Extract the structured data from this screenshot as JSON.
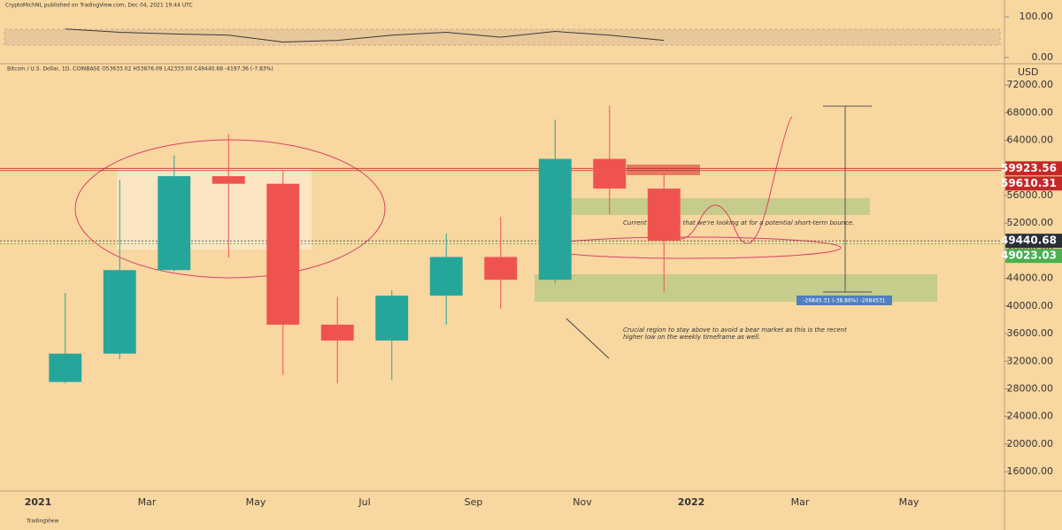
{
  "header": "CryptoMichNL published on TradingView.com, Dec 04, 2021 19:44 UTC",
  "legend_line": "Bitcoin / U.S. Dollar, 1D, COINBASE  O53633.02  H53876.09  L42333.00  C49440.68  -4197.36 (-7.83%)",
  "footer": "TradingView",
  "rsi": {
    "ylim": [
      0,
      100
    ],
    "yticks": [
      {
        "value": 100,
        "label": "100.00"
      },
      {
        "value": 0,
        "label": "0.00"
      }
    ],
    "values": [
      70,
      62,
      58,
      55,
      38,
      42,
      55,
      62,
      50,
      64,
      55,
      42
    ]
  },
  "chart_data": {
    "type": "candlestick",
    "y_label": "USD",
    "categories": [
      "2021",
      null,
      "Mar",
      null,
      "May",
      null,
      "Jul",
      null,
      "Sep",
      null,
      "Nov",
      null,
      "2022",
      null,
      "Mar",
      null,
      "May"
    ],
    "open": [
      29000,
      33100,
      45200,
      58800,
      57700,
      37300,
      35000,
      41500,
      47100,
      43800,
      61300,
      57000,
      null,
      null,
      null,
      null,
      null
    ],
    "high": [
      41900,
      58300,
      61800,
      64900,
      59500,
      41300,
      42300,
      50500,
      52900,
      67000,
      69000,
      59100,
      null,
      null,
      null,
      null,
      null
    ],
    "low": [
      28800,
      32300,
      45000,
      47000,
      30000,
      28800,
      29300,
      37300,
      39600,
      43300,
      53300,
      42000,
      null,
      null,
      null,
      null,
      null
    ],
    "close": [
      33100,
      45200,
      58800,
      57700,
      37300,
      35000,
      41500,
      47100,
      43800,
      61300,
      57000,
      49440.68,
      null,
      null,
      null,
      null,
      null
    ],
    "up_color": "#26a69a",
    "down_color": "#ef5350",
    "ylim": [
      13200,
      74700
    ],
    "yticks": [
      {
        "value": 16000,
        "label": "16000.00"
      },
      {
        "value": 20000,
        "label": "20000.00"
      },
      {
        "value": 24000,
        "label": "24000.00"
      },
      {
        "value": 28000,
        "label": "28000.00"
      },
      {
        "value": 32000,
        "label": "32000.00"
      },
      {
        "value": 36000,
        "label": "36000.00"
      },
      {
        "value": 40000,
        "label": "40000.00"
      },
      {
        "value": 44000,
        "label": "44000.00"
      },
      {
        "value": 48000,
        "label": "48000.00"
      },
      {
        "value": 52000,
        "label": "52000.00"
      },
      {
        "value": 56000,
        "label": "56000.00"
      },
      {
        "value": 60000,
        "label": "60000.00"
      },
      {
        "value": 64000,
        "label": "64000.00"
      },
      {
        "value": 68000,
        "label": "68000.00"
      },
      {
        "value": 72000,
        "label": "72000.00"
      }
    ],
    "price_tags": [
      {
        "value": 59923.56,
        "label": "59923.56",
        "color": "#c62828"
      },
      {
        "value": 59610.31,
        "label": "59610.31",
        "color": "#c62828"
      },
      {
        "value": 49440.68,
        "label": "49440.68",
        "color": "#2a2e39"
      },
      {
        "value": 49023.03,
        "label": "49023.03",
        "color": "#4caf50"
      }
    ],
    "annotations": [
      "Current timeframe that we're looking at for a potential short-term bounce.",
      "Crucial region to stay above to avoid a bear market as this is the recent",
      "higher low on the weekly timeframe as well.",
      "-26845.31 (-38.86%) -2684531"
    ]
  }
}
